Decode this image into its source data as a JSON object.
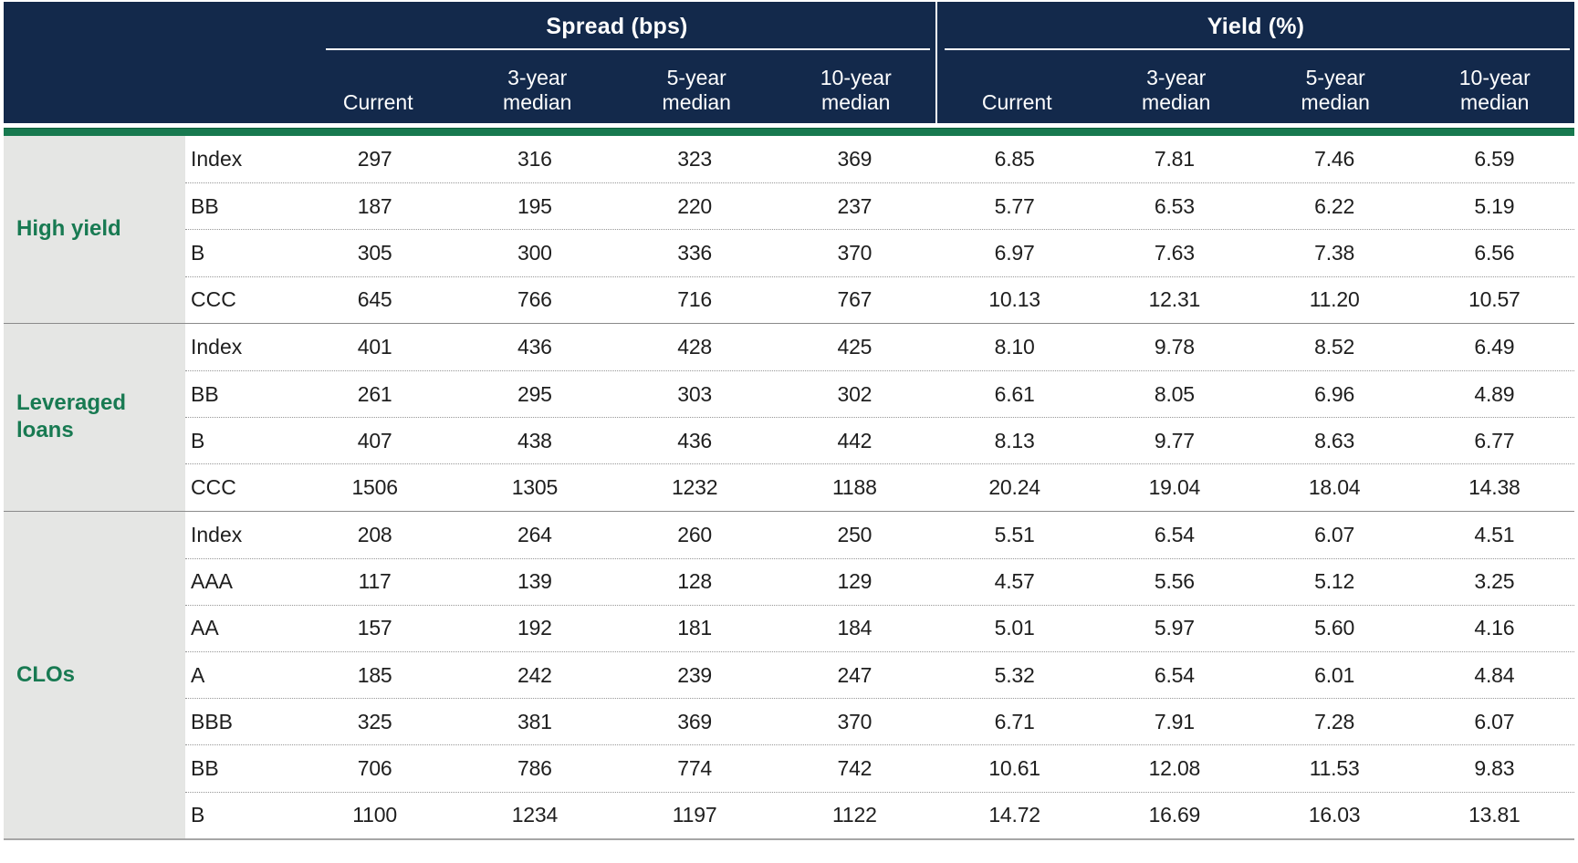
{
  "header": {
    "spread_title": "Spread (bps)",
    "yield_title": "Yield (%)",
    "sub_columns": [
      "Current",
      "3-year\nmedian",
      "5-year\nmedian",
      "10-year\nmedian"
    ]
  },
  "colors": {
    "header_navy": "#13294B",
    "accent_green_bar": "#17794F",
    "category_text_green": "#187A52",
    "category_bg_gray": "#E5E6E4"
  },
  "chart_data": {
    "type": "table",
    "column_groups": [
      "Spread (bps)",
      "Yield (%)"
    ],
    "columns_per_group": [
      "Current",
      "3-year median",
      "5-year median",
      "10-year median"
    ],
    "row_groups": [
      {
        "label": "High yield",
        "rows": [
          {
            "label": "Index",
            "spread": [
              "297",
              "316",
              "323",
              "369"
            ],
            "yield": [
              "6.85",
              "7.81",
              "7.46",
              "6.59"
            ]
          },
          {
            "label": "BB",
            "spread": [
              "187",
              "195",
              "220",
              "237"
            ],
            "yield": [
              "5.77",
              "6.53",
              "6.22",
              "5.19"
            ]
          },
          {
            "label": "B",
            "spread": [
              "305",
              "300",
              "336",
              "370"
            ],
            "yield": [
              "6.97",
              "7.63",
              "7.38",
              "6.56"
            ]
          },
          {
            "label": "CCC",
            "spread": [
              "645",
              "766",
              "716",
              "767"
            ],
            "yield": [
              "10.13",
              "12.31",
              "11.20",
              "10.57"
            ]
          }
        ]
      },
      {
        "label": "Leveraged loans",
        "rows": [
          {
            "label": "Index",
            "spread": [
              "401",
              "436",
              "428",
              "425"
            ],
            "yield": [
              "8.10",
              "9.78",
              "8.52",
              "6.49"
            ]
          },
          {
            "label": "BB",
            "spread": [
              "261",
              "295",
              "303",
              "302"
            ],
            "yield": [
              "6.61",
              "8.05",
              "6.96",
              "4.89"
            ]
          },
          {
            "label": "B",
            "spread": [
              "407",
              "438",
              "436",
              "442"
            ],
            "yield": [
              "8.13",
              "9.77",
              "8.63",
              "6.77"
            ]
          },
          {
            "label": "CCC",
            "spread": [
              "1506",
              "1305",
              "1232",
              "1188"
            ],
            "yield": [
              "20.24",
              "19.04",
              "18.04",
              "14.38"
            ]
          }
        ]
      },
      {
        "label": "CLOs",
        "rows": [
          {
            "label": "Index",
            "spread": [
              "208",
              "264",
              "260",
              "250"
            ],
            "yield": [
              "5.51",
              "6.54",
              "6.07",
              "4.51"
            ]
          },
          {
            "label": "AAA",
            "spread": [
              "117",
              "139",
              "128",
              "129"
            ],
            "yield": [
              "4.57",
              "5.56",
              "5.12",
              "3.25"
            ]
          },
          {
            "label": "AA",
            "spread": [
              "157",
              "192",
              "181",
              "184"
            ],
            "yield": [
              "5.01",
              "5.97",
              "5.60",
              "4.16"
            ]
          },
          {
            "label": "A",
            "spread": [
              "185",
              "242",
              "239",
              "247"
            ],
            "yield": [
              "5.32",
              "6.54",
              "6.01",
              "4.84"
            ]
          },
          {
            "label": "BBB",
            "spread": [
              "325",
              "381",
              "369",
              "370"
            ],
            "yield": [
              "6.71",
              "7.91",
              "7.28",
              "6.07"
            ]
          },
          {
            "label": "BB",
            "spread": [
              "706",
              "786",
              "774",
              "742"
            ],
            "yield": [
              "10.61",
              "12.08",
              "11.53",
              "9.83"
            ]
          },
          {
            "label": "B",
            "spread": [
              "1100",
              "1234",
              "1197",
              "1122"
            ],
            "yield": [
              "14.72",
              "16.69",
              "16.03",
              "13.81"
            ]
          }
        ]
      }
    ]
  }
}
